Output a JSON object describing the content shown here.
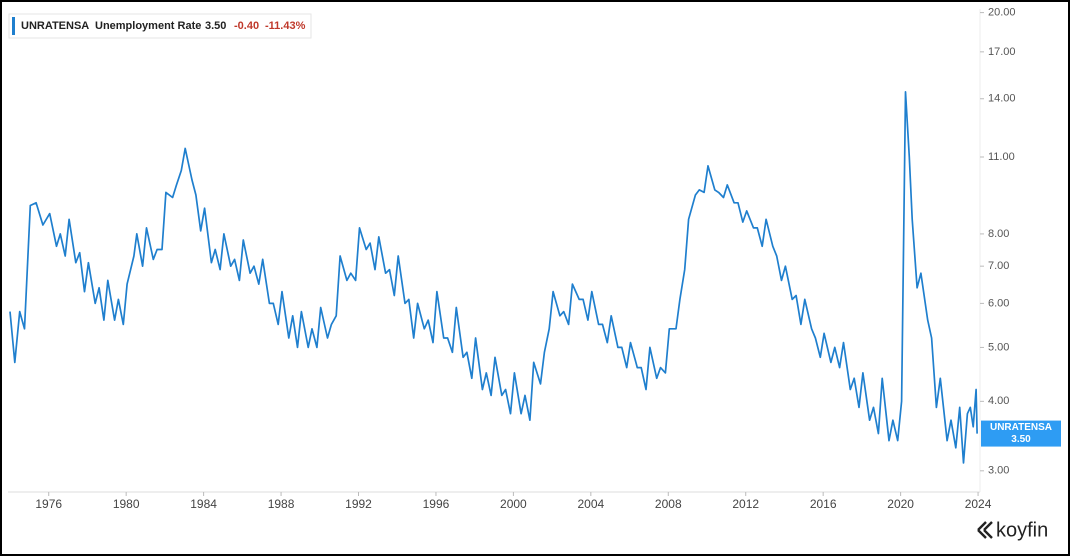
{
  "chart_data": {
    "type": "line",
    "title": "Unemployment Rate",
    "series": [
      {
        "name": "UNRATENSA",
        "color": "#1f7fce",
        "values": [
          5.8,
          4.7,
          5.8,
          5.4,
          9.0,
          9.1,
          8.3,
          8.7,
          7.6,
          8.0,
          7.3,
          8.5,
          7.1,
          7.4,
          6.3,
          7.1,
          6.0,
          6.4,
          5.6,
          6.6,
          5.6,
          6.1,
          5.5,
          6.5,
          7.3,
          8.0,
          7.0,
          8.2,
          7.2,
          7.5,
          7.5,
          9.5,
          9.3,
          9.8,
          10.4,
          11.4,
          10.0,
          9.4,
          8.1,
          8.9,
          7.1,
          7.5,
          6.9,
          8.0,
          7.0,
          7.2,
          6.6,
          7.8,
          6.8,
          7.0,
          6.5,
          7.2,
          6.0,
          6.0,
          5.5,
          6.3,
          5.2,
          5.7,
          5.0,
          5.8,
          5.0,
          5.4,
          5.0,
          5.9,
          5.2,
          5.5,
          5.7,
          7.3,
          6.6,
          6.8,
          6.6,
          8.2,
          7.5,
          7.7,
          6.9,
          7.9,
          6.8,
          6.9,
          6.2,
          7.3,
          6.0,
          6.1,
          5.2,
          6.0,
          5.4,
          5.6,
          5.1,
          6.3,
          5.2,
          5.2,
          4.9,
          5.9,
          4.8,
          4.9,
          4.4,
          5.2,
          4.2,
          4.5,
          4.1,
          4.8,
          4.1,
          4.2,
          3.8,
          4.5,
          3.8,
          4.1,
          3.7,
          4.7,
          4.3,
          4.9,
          5.4,
          6.3,
          5.7,
          5.8,
          5.5,
          6.5,
          6.1,
          6.1,
          5.6,
          6.3,
          5.5,
          5.5,
          5.1,
          5.7,
          5.0,
          5.0,
          4.6,
          5.1,
          4.6,
          4.6,
          4.2,
          5.0,
          4.4,
          4.6,
          4.5,
          5.4,
          5.4,
          6.1,
          6.9,
          8.5,
          9.4,
          9.6,
          9.5,
          10.6,
          9.6,
          9.5,
          9.3,
          9.8,
          9.1,
          9.1,
          8.4,
          8.8,
          8.2,
          8.2,
          7.6,
          8.5,
          7.6,
          7.3,
          6.6,
          7.0,
          6.1,
          6.2,
          5.5,
          6.1,
          5.4,
          5.2,
          4.8,
          5.3,
          4.7,
          5.0,
          4.6,
          5.1,
          4.2,
          4.4,
          3.9,
          4.5,
          3.7,
          3.9,
          3.5,
          4.4,
          3.4,
          3.7,
          3.4,
          4.0,
          14.4,
          11.0,
          8.5,
          6.4,
          6.8,
          5.6,
          5.2,
          3.9,
          4.4,
          3.4,
          3.7,
          3.3,
          3.9,
          3.1,
          3.8,
          3.9,
          3.6,
          4.2,
          3.5
        ]
      }
    ],
    "x": [
      1974.0,
      1974.25,
      1974.5,
      1974.75,
      1975.05,
      1975.35,
      1975.7,
      1976.05,
      1976.4,
      1976.6,
      1976.85,
      1977.05,
      1977.4,
      1977.6,
      1977.85,
      1978.05,
      1978.4,
      1978.6,
      1978.85,
      1979.05,
      1979.4,
      1979.6,
      1979.85,
      1980.05,
      1980.4,
      1980.55,
      1980.85,
      1981.05,
      1981.4,
      1981.6,
      1981.85,
      1982.05,
      1982.4,
      1982.6,
      1982.85,
      1983.05,
      1983.4,
      1983.6,
      1983.85,
      1984.05,
      1984.4,
      1984.6,
      1984.85,
      1985.05,
      1985.4,
      1985.6,
      1985.85,
      1986.05,
      1986.4,
      1986.6,
      1986.85,
      1987.05,
      1987.4,
      1987.6,
      1987.85,
      1988.05,
      1988.4,
      1988.6,
      1988.85,
      1989.05,
      1989.4,
      1989.6,
      1989.85,
      1990.05,
      1990.4,
      1990.6,
      1990.85,
      1991.05,
      1991.4,
      1991.6,
      1991.85,
      1992.05,
      1992.4,
      1992.6,
      1992.85,
      1993.05,
      1993.4,
      1993.6,
      1993.85,
      1994.05,
      1994.4,
      1994.6,
      1994.85,
      1995.05,
      1995.4,
      1995.6,
      1995.85,
      1996.05,
      1996.4,
      1996.6,
      1996.85,
      1997.05,
      1997.4,
      1997.6,
      1997.85,
      1998.05,
      1998.4,
      1998.6,
      1998.85,
      1999.05,
      1999.4,
      1999.6,
      1999.85,
      2000.05,
      2000.4,
      2000.6,
      2000.85,
      2001.05,
      2001.4,
      2001.6,
      2001.85,
      2002.05,
      2002.4,
      2002.6,
      2002.85,
      2003.05,
      2003.4,
      2003.6,
      2003.85,
      2004.05,
      2004.4,
      2004.6,
      2004.85,
      2005.05,
      2005.4,
      2005.6,
      2005.85,
      2006.05,
      2006.4,
      2006.6,
      2006.85,
      2007.05,
      2007.4,
      2007.6,
      2007.85,
      2008.05,
      2008.4,
      2008.6,
      2008.85,
      2009.05,
      2009.4,
      2009.6,
      2009.85,
      2010.05,
      2010.4,
      2010.6,
      2010.85,
      2011.05,
      2011.4,
      2011.6,
      2011.85,
      2012.05,
      2012.4,
      2012.6,
      2012.85,
      2013.05,
      2013.4,
      2013.6,
      2013.85,
      2014.05,
      2014.4,
      2014.6,
      2014.85,
      2015.05,
      2015.4,
      2015.6,
      2015.85,
      2016.05,
      2016.4,
      2016.6,
      2016.85,
      2017.05,
      2017.4,
      2017.6,
      2017.85,
      2018.05,
      2018.4,
      2018.6,
      2018.85,
      2019.05,
      2019.4,
      2019.6,
      2019.85,
      2020.05,
      2020.25,
      2020.45,
      2020.6,
      2020.85,
      2021.05,
      2021.4,
      2021.6,
      2021.85,
      2022.05,
      2022.4,
      2022.6,
      2022.85,
      2023.05,
      2023.25,
      2023.45,
      2023.6,
      2023.75,
      2023.9,
      2023.95
    ],
    "xlim": [
      1974.0,
      2024.1
    ],
    "xticks": [
      1976,
      1980,
      1984,
      1988,
      1992,
      1996,
      2000,
      2004,
      2008,
      2012,
      2016,
      2020,
      2024
    ],
    "ylim": [
      2.9,
      20.3
    ],
    "yticks": [
      {
        "value": 3,
        "label": "3.00"
      },
      {
        "value": 4,
        "label": "4.00"
      },
      {
        "value": 5,
        "label": "5.00"
      },
      {
        "value": 6,
        "label": "6.00"
      },
      {
        "value": 7,
        "label": "7.00"
      },
      {
        "value": 8,
        "label": "8.00"
      },
      {
        "value": 11,
        "label": "11.00"
      },
      {
        "value": 14,
        "label": "14.00"
      },
      {
        "value": 17,
        "label": "17.00"
      },
      {
        "value": 20,
        "label": "20.00"
      }
    ],
    "log_y": true,
    "grid": false
  },
  "quote": {
    "last": "3.50",
    "change": "-0.40",
    "change_pct": "-11.43%"
  },
  "brand": "koyfin"
}
